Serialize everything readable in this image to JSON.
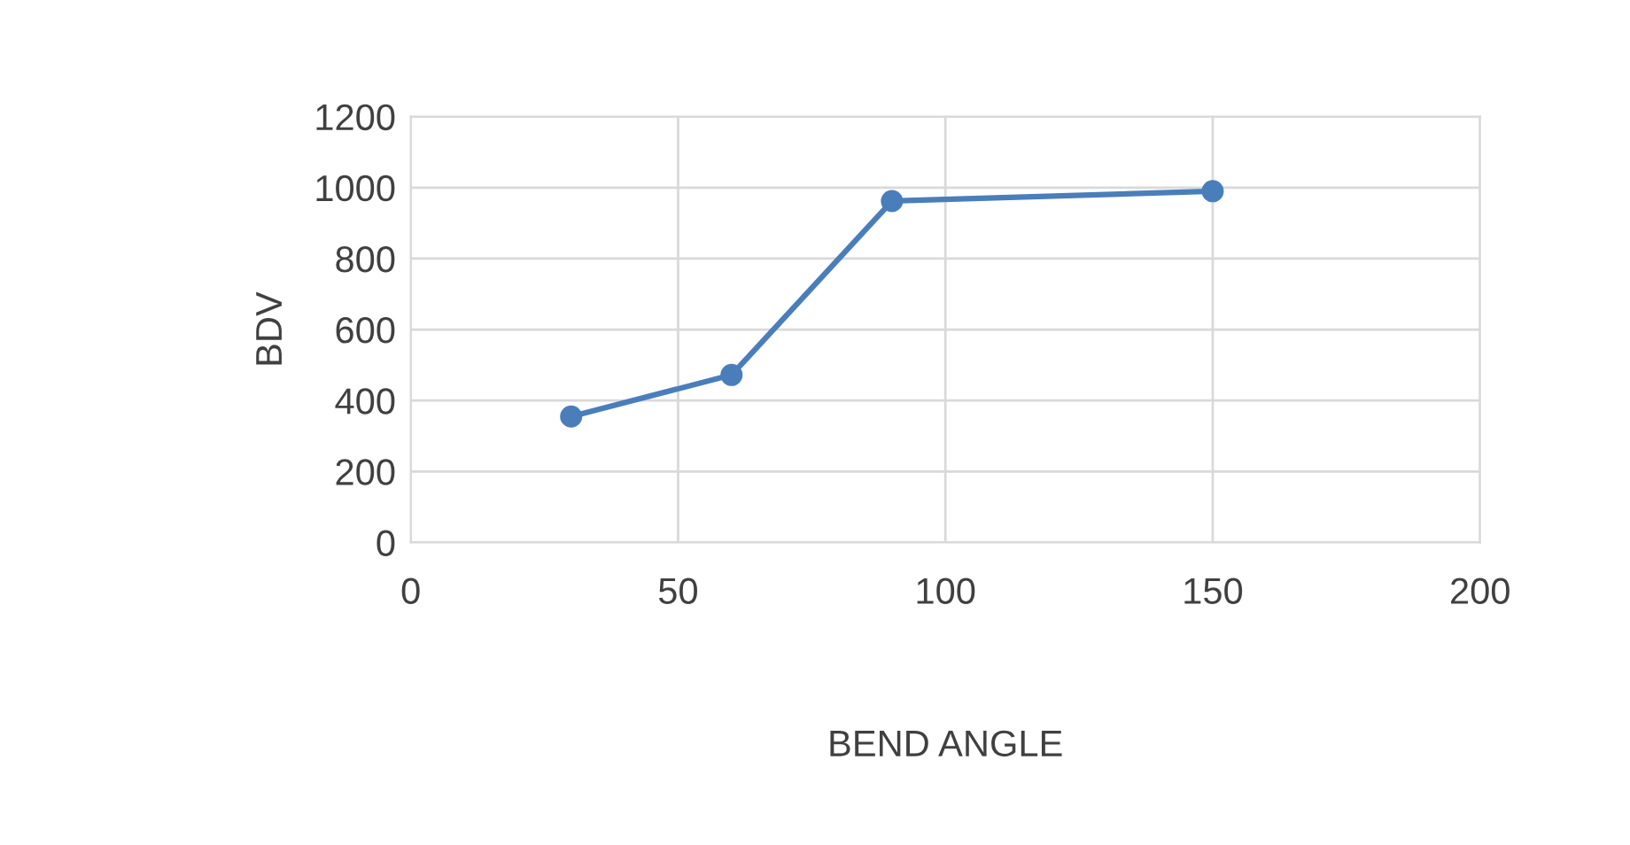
{
  "chart_data": {
    "type": "line",
    "xlabel": "BEND ANGLE",
    "ylabel": "BDV",
    "x": [
      30,
      60,
      90,
      150
    ],
    "series": [
      {
        "color": "#4a7ebb",
        "values": [
          355,
          472,
          962,
          990
        ]
      }
    ],
    "xlim": [
      0,
      200
    ],
    "xticks": [
      0,
      50,
      100,
      150,
      200
    ],
    "ylim": [
      0,
      1200
    ],
    "yticks": [
      0,
      200,
      400,
      600,
      800,
      1000,
      1200
    ],
    "grid": true,
    "marker": "circle",
    "line_style": "solid"
  }
}
